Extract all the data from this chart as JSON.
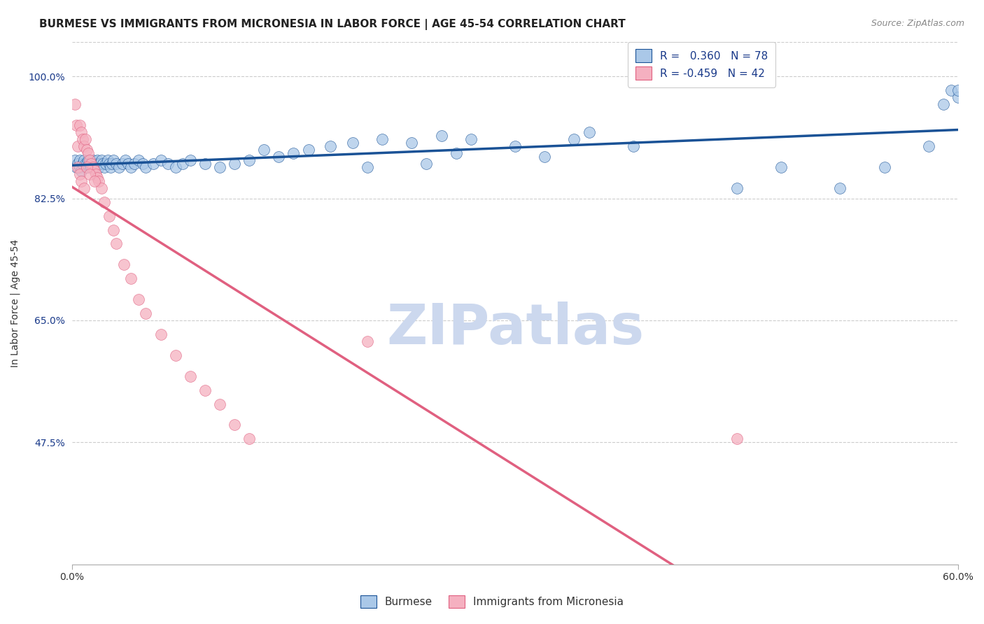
{
  "title": "BURMESE VS IMMIGRANTS FROM MICRONESIA IN LABOR FORCE | AGE 45-54 CORRELATION CHART",
  "source": "Source: ZipAtlas.com",
  "ylabel": "In Labor Force | Age 45-54",
  "x_min": 0.0,
  "x_max": 0.6,
  "y_min": 0.3,
  "y_max": 1.05,
  "y_ticks": [
    0.475,
    0.65,
    0.825,
    1.0
  ],
  "y_tick_labels": [
    "47.5%",
    "65.0%",
    "82.5%",
    "100.0%"
  ],
  "x_ticks": [
    0.0,
    0.6
  ],
  "x_tick_labels": [
    "0.0%",
    "60.0%"
  ],
  "r_blue": 0.36,
  "n_blue": 78,
  "r_pink": -0.459,
  "n_pink": 42,
  "blue_color": "#aac8e8",
  "blue_line_color": "#1a5296",
  "pink_color": "#f5b0c0",
  "pink_line_color": "#e06080",
  "background_color": "#ffffff",
  "grid_color": "#cccccc",
  "watermark_color": "#ccd8ee",
  "legend_r_color": "#1a3a8a",
  "title_fontsize": 11,
  "blue_scatter_x": [
    0.002,
    0.003,
    0.004,
    0.005,
    0.005,
    0.006,
    0.007,
    0.008,
    0.009,
    0.01,
    0.01,
    0.011,
    0.012,
    0.013,
    0.014,
    0.015,
    0.015,
    0.016,
    0.017,
    0.018,
    0.018,
    0.019,
    0.02,
    0.021,
    0.022,
    0.023,
    0.024,
    0.025,
    0.026,
    0.027,
    0.028,
    0.03,
    0.032,
    0.034,
    0.036,
    0.038,
    0.04,
    0.042,
    0.045,
    0.048,
    0.05,
    0.055,
    0.06,
    0.065,
    0.07,
    0.075,
    0.08,
    0.09,
    0.1,
    0.11,
    0.12,
    0.13,
    0.14,
    0.15,
    0.16,
    0.175,
    0.19,
    0.21,
    0.23,
    0.25,
    0.27,
    0.3,
    0.32,
    0.35,
    0.38,
    0.2,
    0.24,
    0.26,
    0.34,
    0.45,
    0.48,
    0.52,
    0.55,
    0.58,
    0.59,
    0.595,
    0.6,
    0.6
  ],
  "blue_scatter_y": [
    0.88,
    0.87,
    0.875,
    0.87,
    0.88,
    0.865,
    0.875,
    0.88,
    0.875,
    0.87,
    0.875,
    0.88,
    0.875,
    0.87,
    0.88,
    0.875,
    0.87,
    0.875,
    0.88,
    0.875,
    0.87,
    0.875,
    0.88,
    0.875,
    0.87,
    0.875,
    0.88,
    0.875,
    0.87,
    0.875,
    0.88,
    0.875,
    0.87,
    0.875,
    0.88,
    0.875,
    0.87,
    0.875,
    0.88,
    0.875,
    0.87,
    0.875,
    0.88,
    0.875,
    0.87,
    0.875,
    0.88,
    0.875,
    0.87,
    0.875,
    0.88,
    0.895,
    0.885,
    0.89,
    0.895,
    0.9,
    0.905,
    0.91,
    0.905,
    0.915,
    0.91,
    0.9,
    0.885,
    0.92,
    0.9,
    0.87,
    0.875,
    0.89,
    0.91,
    0.84,
    0.87,
    0.84,
    0.87,
    0.9,
    0.96,
    0.98,
    0.97,
    0.98
  ],
  "pink_scatter_x": [
    0.002,
    0.003,
    0.004,
    0.005,
    0.006,
    0.007,
    0.008,
    0.009,
    0.01,
    0.011,
    0.012,
    0.013,
    0.014,
    0.015,
    0.016,
    0.017,
    0.018,
    0.02,
    0.022,
    0.025,
    0.028,
    0.03,
    0.035,
    0.04,
    0.045,
    0.05,
    0.06,
    0.07,
    0.08,
    0.09,
    0.1,
    0.11,
    0.12,
    0.004,
    0.005,
    0.006,
    0.008,
    0.01,
    0.012,
    0.015,
    0.2,
    0.45
  ],
  "pink_scatter_y": [
    0.96,
    0.93,
    0.9,
    0.93,
    0.92,
    0.91,
    0.9,
    0.91,
    0.895,
    0.89,
    0.88,
    0.875,
    0.87,
    0.865,
    0.86,
    0.855,
    0.85,
    0.84,
    0.82,
    0.8,
    0.78,
    0.76,
    0.73,
    0.71,
    0.68,
    0.66,
    0.63,
    0.6,
    0.57,
    0.55,
    0.53,
    0.5,
    0.48,
    0.87,
    0.86,
    0.85,
    0.84,
    0.87,
    0.86,
    0.85,
    0.62,
    0.48
  ]
}
